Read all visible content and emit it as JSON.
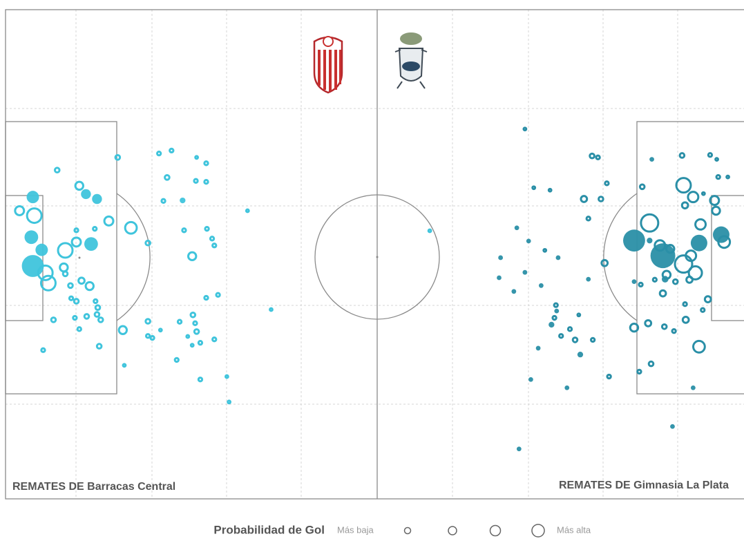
{
  "chart_data": {
    "type": "scatter",
    "xlim": [
      0,
      100
    ],
    "ylim": [
      0,
      100
    ],
    "legend_title": "Probabilidad de Gol",
    "legend_low": "Más baja",
    "legend_high": "Más alta",
    "series": [
      {
        "name": "REMATES DE Barracas Central",
        "color": "#3fc4dc",
        "x": [
          3.7,
          1.9,
          3.9,
          3.5,
          3.7,
          4.9,
          5.4,
          5.8,
          8.1,
          9.6,
          11.6,
          7.0,
          10,
          10.9,
          12.4,
          14,
          17.0,
          15.2,
          20.8,
          22.5,
          21.9,
          25.9,
          27.2,
          25.8,
          27.2,
          21.4,
          24.0,
          32.8,
          24.2,
          27.3,
          28,
          28.3,
          25.3,
          19.3,
          12.1,
          9.6,
          7.9,
          8.1,
          10.3,
          11.4,
          8.8,
          9.6,
          12.2,
          12.5,
          8.9,
          11.0,
          9.4,
          12.4,
          12.9,
          10,
          6.5,
          5.1,
          12.7,
          15.9,
          16.1,
          19.3,
          19.3,
          19.9,
          21,
          23.6,
          25.4,
          25.7,
          25.9,
          24.7,
          26.4,
          25.3,
          28.3,
          23.2,
          26.4,
          30,
          30.3,
          27.2,
          28.8,
          36,
          57.5
        ],
        "y": [
          38.3,
          41.1,
          42.1,
          46.5,
          52.4,
          49.1,
          53.8,
          55.9,
          49.2,
          47.5,
          47.9,
          32.8,
          36,
          37.7,
          38.7,
          43.2,
          44.6,
          30.2,
          29.4,
          28.8,
          34.3,
          30.2,
          31.4,
          35.0,
          35.2,
          39.1,
          39.0,
          41.1,
          45.1,
          44.8,
          46.8,
          48.2,
          50.4,
          47.7,
          44.8,
          45.1,
          52.7,
          54,
          55.4,
          56.5,
          56.4,
          59.6,
          59.6,
          60.9,
          59.0,
          62.7,
          63.0,
          62.3,
          63.4,
          65.3,
          63.4,
          69.6,
          68.8,
          65.5,
          72.7,
          63.7,
          66.7,
          67.1,
          65.5,
          63.8,
          62.4,
          64.1,
          65.8,
          66.8,
          68.1,
          68.6,
          67.4,
          71.6,
          75.6,
          75,
          80.2,
          58.9,
          58.3,
          61.3,
          45.2
        ],
        "xg": [
          0.14,
          0.11,
          0.25,
          0.17,
          0.44,
          0.14,
          0.25,
          0.25,
          0.25,
          0.11,
          0.17,
          0.04,
          0.09,
          0.09,
          0.09,
          0.11,
          0.17,
          0.04,
          0.03,
          0.03,
          0.04,
          0.02,
          0.03,
          0.03,
          0.03,
          0.03,
          0.03,
          0.02,
          0.03,
          0.03,
          0.03,
          0.03,
          0.09,
          0.04,
          0.03,
          0.03,
          0.09,
          0.04,
          0.06,
          0.09,
          0.04,
          0.04,
          0.03,
          0.04,
          0.03,
          0.04,
          0.03,
          0.04,
          0.04,
          0.03,
          0.04,
          0.03,
          0.04,
          0.09,
          0.02,
          0.04,
          0.03,
          0.03,
          0.02,
          0.03,
          0.04,
          0.03,
          0.04,
          0.02,
          0.03,
          0.02,
          0.03,
          0.03,
          0.03,
          0.02,
          0.02,
          0.03,
          0.03,
          0.02,
          0.02
        ],
        "filled": [
          1,
          0,
          0,
          1,
          1,
          1,
          0,
          0,
          0,
          0,
          1,
          0,
          0,
          1,
          1,
          0,
          0,
          0,
          0,
          0,
          0,
          0,
          0,
          0,
          0,
          0,
          1,
          0,
          0,
          0,
          0,
          0,
          0,
          0,
          0,
          0,
          0,
          0,
          0,
          0,
          0,
          0,
          0,
          0,
          0,
          0,
          0,
          0,
          0,
          0,
          0,
          0,
          0,
          0,
          0,
          0,
          0,
          0,
          0,
          0,
          0,
          0,
          0,
          0,
          0,
          0,
          0,
          0,
          0,
          0,
          0,
          0,
          0,
          0,
          0
        ]
      },
      {
        "name": "REMATES DE Gimnasia La Plata",
        "color": "#2a8fa7",
        "x": [
          70.4,
          79.5,
          80.3,
          87.6,
          91.7,
          95.5,
          96.4,
          96.6,
          97.9,
          71.6,
          73.8,
          81.5,
          86.3,
          91.9,
          93.2,
          96.1,
          94.6,
          78.4,
          80.7,
          92.1,
          96.3,
          87.3,
          94.2,
          97,
          97.4,
          94,
          85.2,
          79,
          69.3,
          70.9,
          73.1,
          74.9,
          67.1,
          70.4,
          72.6,
          66.9,
          68.9,
          79,
          81.2,
          89.1,
          88.7,
          90.1,
          91.9,
          92.9,
          93.5,
          89.6,
          89.4,
          88,
          90.8,
          92.7,
          85.2,
          86.1,
          89.1,
          92.1,
          95.2,
          94.5,
          87.3,
          74.6,
          74.7,
          74.4,
          74,
          77.7,
          76.5,
          75.3,
          77.2,
          79.6,
          77.9,
          72.2,
          85.2,
          87.1,
          89.3,
          90.6,
          92.2,
          94,
          87.5,
          85.9,
          81.8,
          76.1,
          71.2,
          93.2,
          90.4,
          69.6
        ],
        "y": [
          24.4,
          29.9,
          30.2,
          30.6,
          29.8,
          29.7,
          30.6,
          34.2,
          34.2,
          36.4,
          36.9,
          35.5,
          36.2,
          35.9,
          38.3,
          39.0,
          37.6,
          38.7,
          38.7,
          40,
          41.1,
          43.6,
          43.9,
          46.0,
          47.5,
          47.7,
          47.2,
          42.7,
          44.6,
          47.3,
          49.2,
          50.7,
          50.7,
          53.7,
          56.4,
          54.8,
          57.6,
          55.1,
          51.8,
          50.3,
          48.2,
          48.9,
          52,
          50.3,
          53.8,
          54.2,
          55.1,
          55.2,
          55.6,
          55.2,
          55.6,
          56.2,
          58.0,
          60.2,
          59.2,
          61.4,
          47.2,
          60.4,
          61.6,
          63,
          64.4,
          62.4,
          65.3,
          66.7,
          67.5,
          67.5,
          70.5,
          69.2,
          65,
          64.1,
          64.8,
          65.7,
          63.4,
          68.9,
          72.4,
          74,
          75,
          77.3,
          75.6,
          77.3,
          85.2,
          89.8
        ],
        "xg": [
          0.02,
          0.04,
          0.03,
          0.02,
          0.04,
          0.03,
          0.02,
          0.03,
          0.02,
          0.02,
          0.02,
          0.03,
          0.04,
          0.25,
          0.14,
          0.11,
          0.02,
          0.06,
          0.04,
          0.06,
          0.09,
          0.34,
          0.14,
          0.25,
          0.17,
          0.25,
          0.44,
          0.03,
          0.02,
          0.02,
          0.02,
          0.02,
          0.02,
          0.02,
          0.02,
          0.02,
          0.02,
          0.02,
          0.06,
          0.56,
          0.14,
          0.09,
          0.34,
          0.14,
          0.21,
          0.09,
          0.04,
          0.03,
          0.04,
          0.06,
          0.02,
          0.03,
          0.06,
          0.03,
          0.06,
          0.03,
          0.03,
          0.03,
          0.02,
          0.03,
          0.03,
          0.02,
          0.03,
          0.03,
          0.04,
          0.03,
          0.03,
          0.02,
          0.09,
          0.06,
          0.04,
          0.03,
          0.06,
          0.17,
          0.04,
          0.03,
          0.03,
          0.02,
          0.02,
          0.02,
          0.02,
          0.02
        ],
        "filled": [
          0,
          0,
          0,
          1,
          0,
          0,
          0,
          0,
          0,
          0,
          0,
          0,
          0,
          0,
          0,
          0,
          0,
          0,
          0,
          0,
          0,
          0,
          0,
          1,
          0,
          1,
          1,
          0,
          1,
          1,
          0,
          1,
          1,
          1,
          1,
          1,
          1,
          1,
          0,
          1,
          0,
          0,
          0,
          0,
          0,
          0,
          1,
          0,
          0,
          0,
          1,
          0,
          0,
          0,
          0,
          0,
          1,
          0,
          1,
          0,
          1,
          0,
          0,
          0,
          0,
          0,
          1,
          1,
          0,
          0,
          0,
          0,
          0,
          0,
          0,
          0,
          0,
          1,
          1,
          1,
          1,
          1
        ]
      }
    ]
  }
}
